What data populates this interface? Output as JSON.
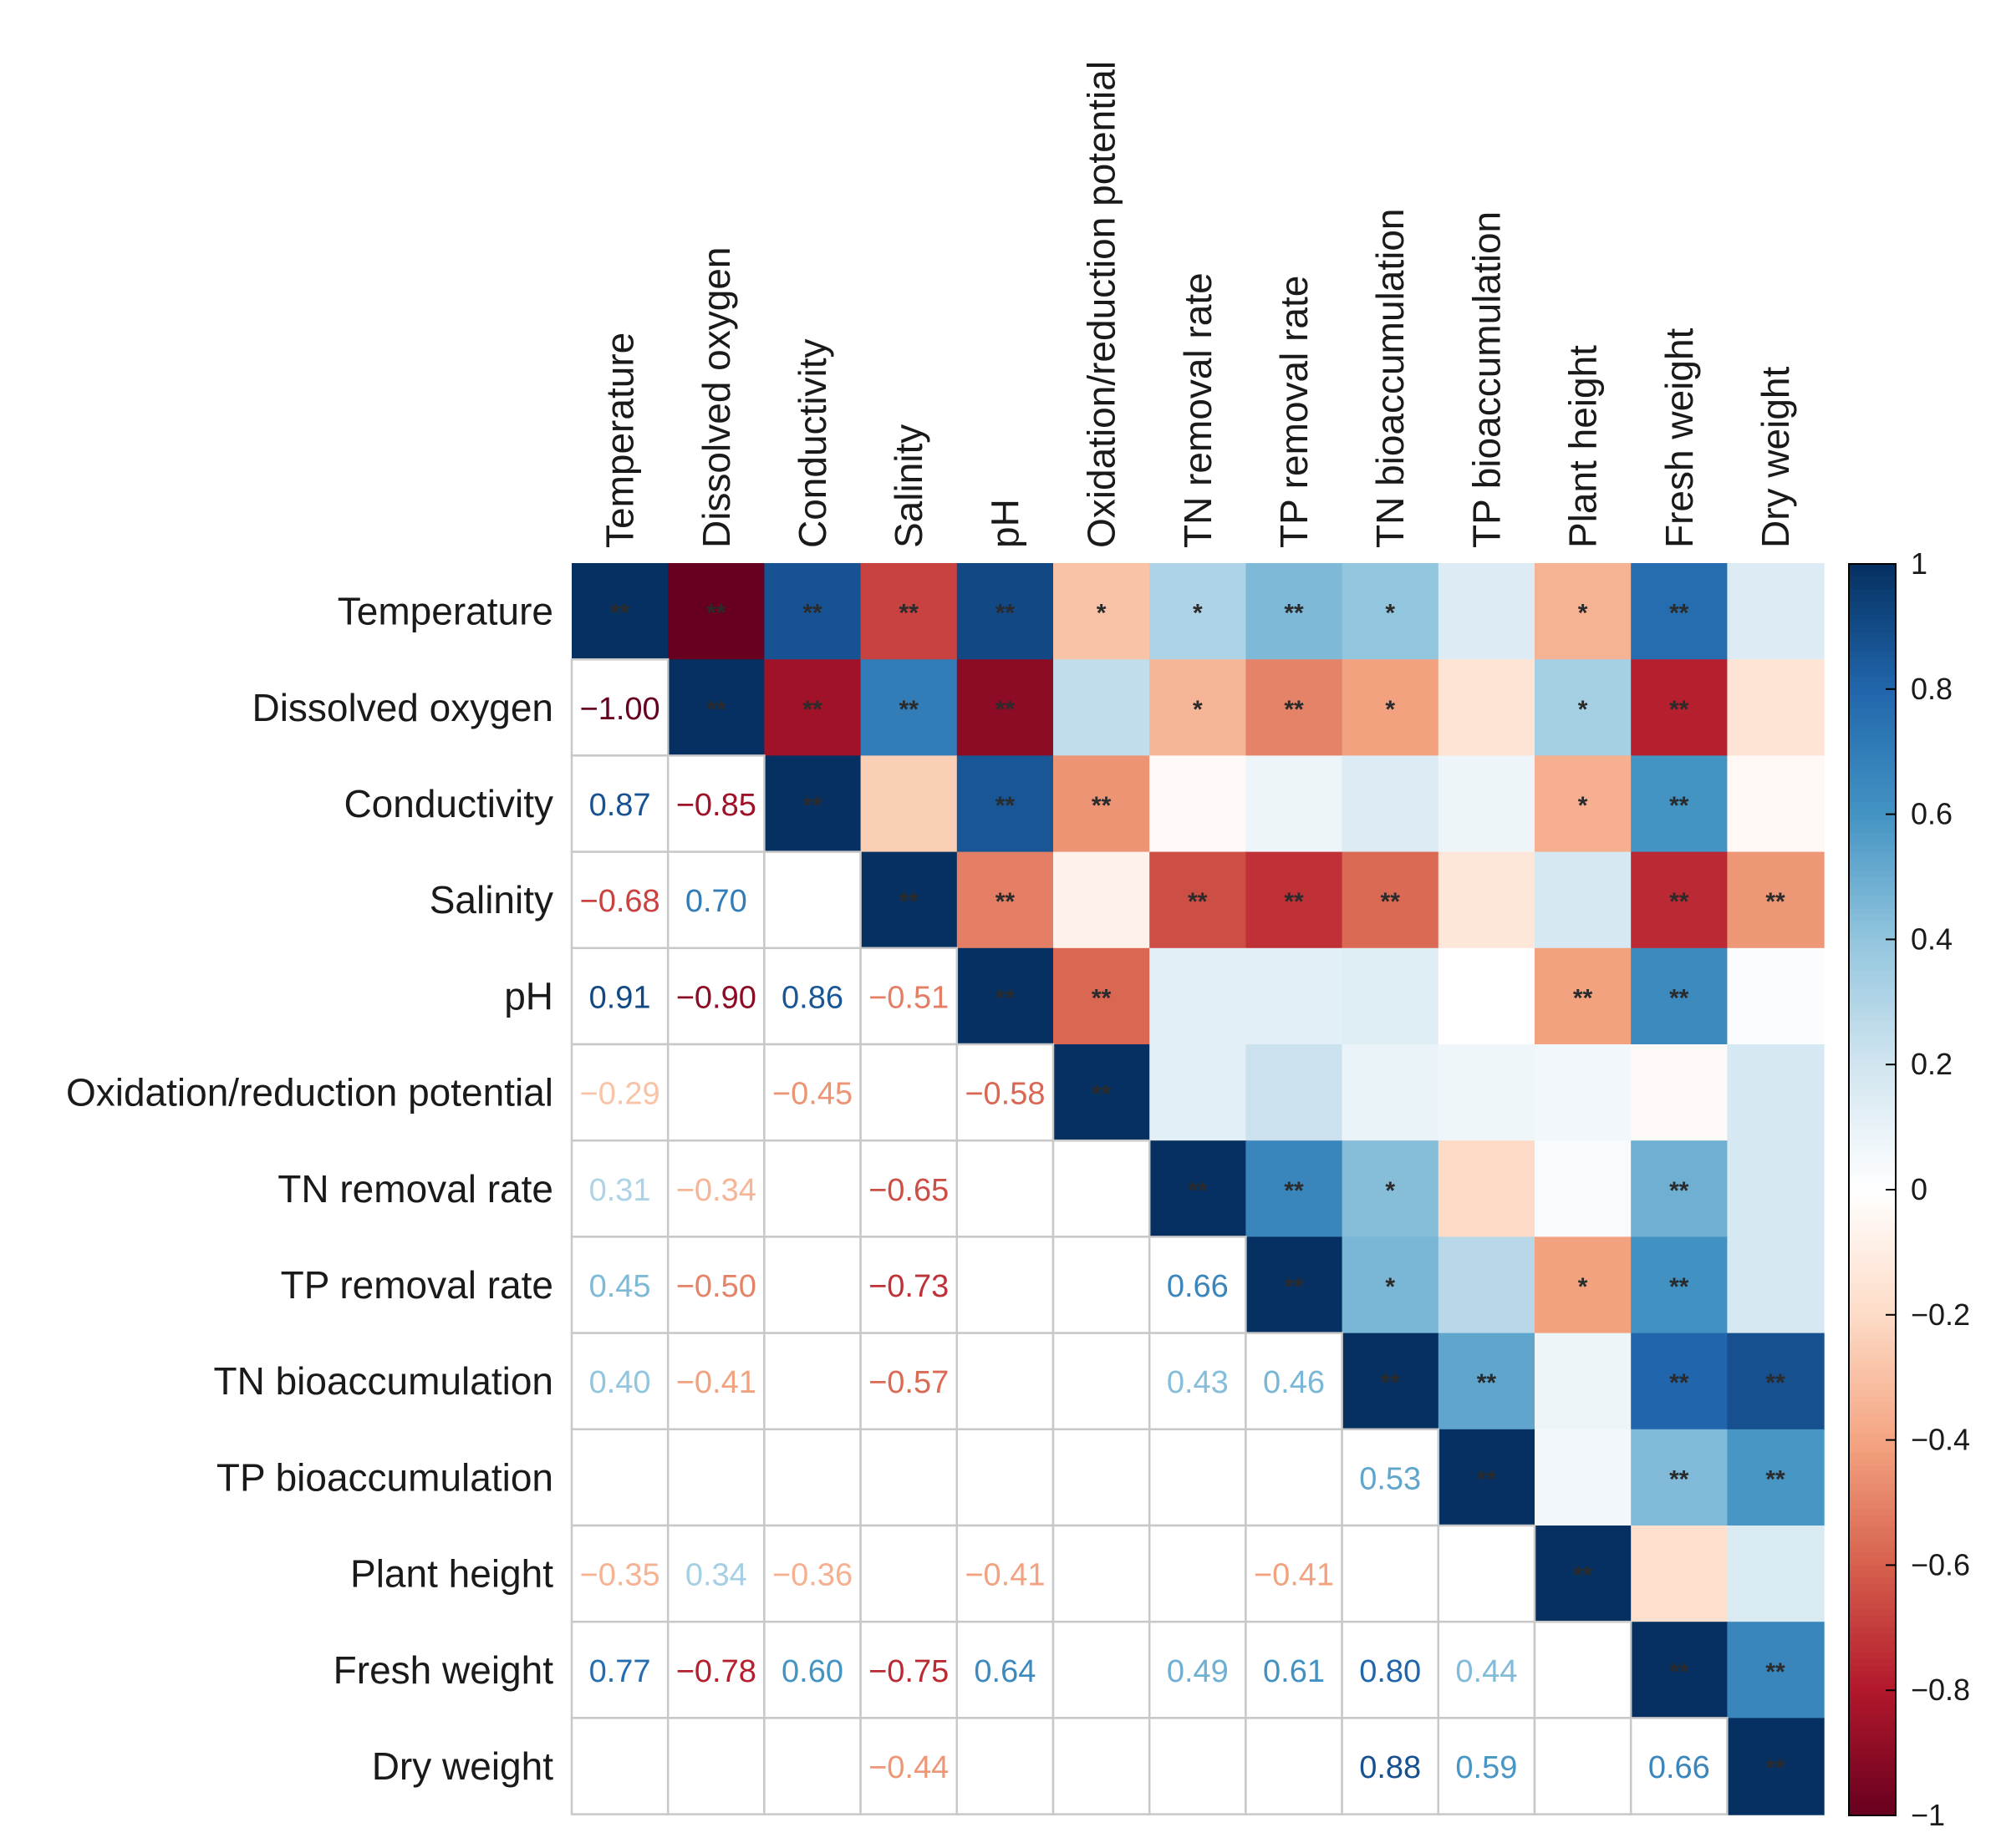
{
  "chart_data": {
    "type": "heatmap",
    "title": "",
    "variables": [
      "Temperature",
      "Dissolved oxygen",
      "Conductivity",
      "Salinity",
      "pH",
      "Oxidation/reduction potential",
      "TN removal rate",
      "TP removal rate",
      "TN bioaccumulation",
      "TP bioaccumulation",
      "Plant height",
      "Fresh weight",
      "Dry weight"
    ],
    "matrix": [
      [
        1.0,
        -1.0,
        0.87,
        -0.68,
        0.91,
        -0.29,
        0.31,
        0.45,
        0.4,
        0.15,
        -0.35,
        0.77,
        0.15
      ],
      [
        -1.0,
        1.0,
        -0.85,
        0.7,
        -0.9,
        0.25,
        -0.34,
        -0.5,
        -0.41,
        -0.15,
        0.34,
        -0.78,
        -0.15
      ],
      [
        0.87,
        -0.85,
        1.0,
        -0.25,
        0.86,
        -0.45,
        -0.03,
        0.08,
        0.15,
        0.08,
        -0.36,
        0.6,
        -0.04
      ],
      [
        -0.68,
        0.7,
        -0.25,
        1.0,
        -0.51,
        -0.08,
        -0.65,
        -0.73,
        -0.57,
        -0.14,
        0.18,
        -0.75,
        -0.44
      ],
      [
        0.91,
        -0.9,
        0.86,
        -0.51,
        1.0,
        -0.58,
        0.12,
        0.12,
        0.14,
        0.0,
        -0.41,
        0.64,
        0.02
      ],
      [
        -0.29,
        0.25,
        -0.45,
        -0.08,
        -0.58,
        1.0,
        0.12,
        0.22,
        0.09,
        0.07,
        0.06,
        -0.03,
        0.18
      ],
      [
        0.31,
        -0.34,
        -0.03,
        -0.65,
        0.12,
        0.12,
        1.0,
        0.66,
        0.43,
        -0.2,
        0.03,
        0.49,
        0.18
      ],
      [
        0.45,
        -0.5,
        0.08,
        -0.73,
        0.12,
        0.22,
        0.66,
        1.0,
        0.46,
        0.28,
        -0.41,
        0.61,
        0.18
      ],
      [
        0.4,
        -0.41,
        0.15,
        -0.57,
        0.14,
        0.09,
        0.43,
        0.46,
        1.0,
        0.53,
        0.08,
        0.8,
        0.88
      ],
      [
        0.15,
        -0.15,
        0.08,
        -0.14,
        0.0,
        0.07,
        -0.2,
        0.28,
        0.53,
        1.0,
        0.06,
        0.44,
        0.59
      ],
      [
        -0.35,
        0.34,
        -0.36,
        0.18,
        -0.41,
        0.06,
        0.03,
        -0.41,
        0.08,
        0.06,
        1.0,
        -0.18,
        0.16
      ],
      [
        0.77,
        -0.78,
        0.6,
        -0.75,
        0.64,
        -0.03,
        0.49,
        0.61,
        0.8,
        0.44,
        -0.18,
        1.0,
        0.66
      ],
      [
        0.15,
        -0.15,
        -0.04,
        -0.44,
        0.02,
        0.18,
        0.18,
        0.18,
        0.88,
        0.59,
        0.16,
        0.66,
        1.0
      ]
    ],
    "lower_labels": [
      [
        "",
        "",
        "",
        "",
        "",
        "",
        "",
        "",
        "",
        "",
        "",
        "",
        ""
      ],
      [
        "−1.00",
        "",
        "",
        "",
        "",
        "",
        "",
        "",
        "",
        "",
        "",
        "",
        ""
      ],
      [
        "0.87",
        "−0.85",
        "",
        "",
        "",
        "",
        "",
        "",
        "",
        "",
        "",
        "",
        ""
      ],
      [
        "−0.68",
        "0.70",
        "",
        "",
        "",
        "",
        "",
        "",
        "",
        "",
        "",
        "",
        ""
      ],
      [
        "0.91",
        "−0.90",
        "0.86",
        "−0.51",
        "",
        "",
        "",
        "",
        "",
        "",
        "",
        "",
        ""
      ],
      [
        "−0.29",
        "",
        "−0.45",
        "",
        "−0.58",
        "",
        "",
        "",
        "",
        "",
        "",
        "",
        ""
      ],
      [
        "0.31",
        "−0.34",
        "",
        "−0.65",
        "",
        "",
        "",
        "",
        "",
        "",
        "",
        "",
        ""
      ],
      [
        "0.45",
        "−0.50",
        "",
        "−0.73",
        "",
        "",
        "0.66",
        "",
        "",
        "",
        "",
        "",
        ""
      ],
      [
        "0.40",
        "−0.41",
        "",
        "−0.57",
        "",
        "",
        "0.43",
        "0.46",
        "",
        "",
        "",
        "",
        ""
      ],
      [
        "",
        "",
        "",
        "",
        "",
        "",
        "",
        "",
        "0.53",
        "",
        "",
        "",
        ""
      ],
      [
        "−0.35",
        "0.34",
        "−0.36",
        "",
        "−0.41",
        "",
        "",
        "−0.41",
        "",
        "",
        "",
        "",
        ""
      ],
      [
        "0.77",
        "−0.78",
        "0.60",
        "−0.75",
        "0.64",
        "",
        "0.49",
        "0.61",
        "0.80",
        "0.44",
        "",
        "",
        ""
      ],
      [
        "",
        "",
        "",
        "−0.44",
        "",
        "",
        "",
        "",
        "0.88",
        "0.59",
        "",
        "0.66",
        ""
      ]
    ],
    "significance": [
      [
        "**",
        "**",
        "**",
        "**",
        "**",
        "*",
        "*",
        "**",
        "*",
        "",
        "*",
        "**",
        ""
      ],
      [
        "",
        "**",
        "**",
        "**",
        "**",
        "",
        "*",
        "**",
        "*",
        "",
        "*",
        "**",
        ""
      ],
      [
        "",
        "",
        "**",
        "",
        "**",
        "**",
        "",
        "",
        "",
        "",
        "*",
        "**",
        ""
      ],
      [
        "",
        "",
        "",
        "**",
        "**",
        "",
        "**",
        "**",
        "**",
        "",
        "",
        "**",
        "**"
      ],
      [
        "",
        "",
        "",
        "",
        "**",
        "**",
        "",
        "",
        "",
        "",
        "**",
        "**",
        ""
      ],
      [
        "",
        "",
        "",
        "",
        "",
        "**",
        "",
        "",
        "",
        "",
        "",
        "",
        ""
      ],
      [
        "",
        "",
        "",
        "",
        "",
        "",
        "**",
        "**",
        "*",
        "",
        "",
        "**",
        ""
      ],
      [
        "",
        "",
        "",
        "",
        "",
        "",
        "",
        "**",
        "*",
        "",
        "*",
        "**",
        ""
      ],
      [
        "",
        "",
        "",
        "",
        "",
        "",
        "",
        "",
        "**",
        "**",
        "",
        "**",
        "**"
      ],
      [
        "",
        "",
        "",
        "",
        "",
        "",
        "",
        "",
        "",
        "**",
        "",
        "**",
        "**"
      ],
      [
        "",
        "",
        "",
        "",
        "",
        "",
        "",
        "",
        "",
        "",
        "**",
        "",
        ""
      ],
      [
        "",
        "",
        "",
        "",
        "",
        "",
        "",
        "",
        "",
        "",
        "",
        "**",
        "**"
      ],
      [
        "",
        "",
        "",
        "",
        "",
        "",
        "",
        "",
        "",
        "",
        "",
        "",
        "**"
      ]
    ],
    "colorbar": {
      "range": [
        -1,
        1
      ],
      "ticks": [
        1,
        0.8,
        0.6,
        0.4,
        0.2,
        0,
        -0.2,
        -0.4,
        -0.6,
        -0.8,
        -1
      ],
      "tick_labels": [
        "1",
        "0.8",
        "0.6",
        "0.4",
        "0.2",
        "0",
        "−0.2",
        "−0.4",
        "−0.6",
        "−0.8",
        "−1"
      ],
      "colors_low_to_high": [
        "#67001f",
        "#b2182b",
        "#d6604d",
        "#f4a582",
        "#fddbc7",
        "#ffffff",
        "#d1e5f0",
        "#92c5de",
        "#4393c3",
        "#2166ac",
        "#053061"
      ]
    },
    "grid_color": "#c8c8c8"
  }
}
